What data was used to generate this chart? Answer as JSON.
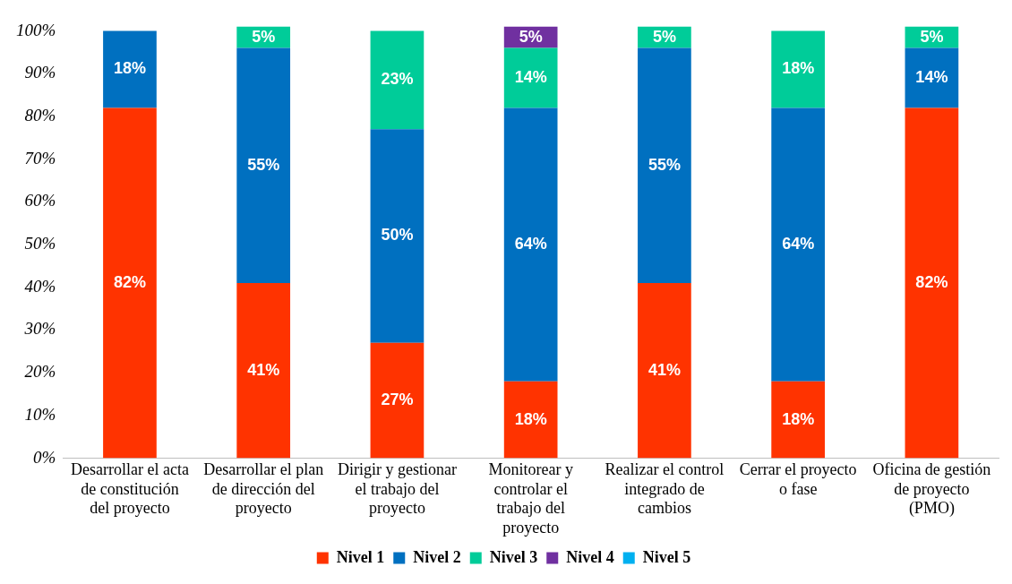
{
  "chart_data": {
    "type": "bar",
    "stacked": true,
    "legend": "bottom",
    "grid": false,
    "categories": [
      "Desarrollar el acta de constitución del proyecto",
      "Desarrollar el plan de dirección del proyecto",
      "Dirigir y gestionar el trabajo del proyecto",
      "Monitorear y controlar el trabajo del proyecto",
      "Realizar el control integrado de cambios",
      "Cerrar el proyecto o fase",
      "Oficina de gestión de proyecto (PMO)"
    ],
    "ylim": [
      0,
      102
    ],
    "yticks": [
      {
        "value": 0,
        "label": "0%"
      },
      {
        "value": 10,
        "label": "10%"
      },
      {
        "value": 20,
        "label": "20%"
      },
      {
        "value": 30,
        "label": "30%"
      },
      {
        "value": 40,
        "label": "40%"
      },
      {
        "value": 50,
        "label": "50%"
      },
      {
        "value": 60,
        "label": "60%"
      },
      {
        "value": 70,
        "label": "70%"
      },
      {
        "value": 80,
        "label": "80%"
      },
      {
        "value": 90,
        "label": "90%"
      },
      {
        "value": 100,
        "label": "100%"
      }
    ],
    "series": [
      {
        "name": "Nivel 1",
        "color": "#ff3300",
        "values": [
          82,
          41,
          27,
          18,
          41,
          18,
          82
        ],
        "value_labels": [
          "82%",
          "41%",
          "27%",
          "18%",
          "41%",
          "18%",
          "82%"
        ]
      },
      {
        "name": "Nivel 2",
        "color": "#0070c0",
        "values": [
          18,
          55,
          50,
          64,
          55,
          64,
          14
        ],
        "value_labels": [
          "18%",
          "55%",
          "50%",
          "64%",
          "55%",
          "64%",
          "14%"
        ]
      },
      {
        "name": "Nivel 3",
        "color": "#00cc99",
        "values": [
          null,
          5,
          23,
          14,
          5,
          18,
          5
        ],
        "value_labels": [
          null,
          "5%",
          "23%",
          "14%",
          "5%",
          "18%",
          "5%"
        ]
      },
      {
        "name": "Nivel 4",
        "color": "#7030a0",
        "values": [
          null,
          null,
          null,
          5,
          null,
          null,
          null
        ],
        "value_labels": [
          null,
          null,
          null,
          "5%",
          null,
          null,
          null
        ]
      },
      {
        "name": "Nivel 5",
        "color": "#00b0f0",
        "values": [
          null,
          null,
          null,
          null,
          null,
          null,
          null
        ]
      }
    ]
  }
}
